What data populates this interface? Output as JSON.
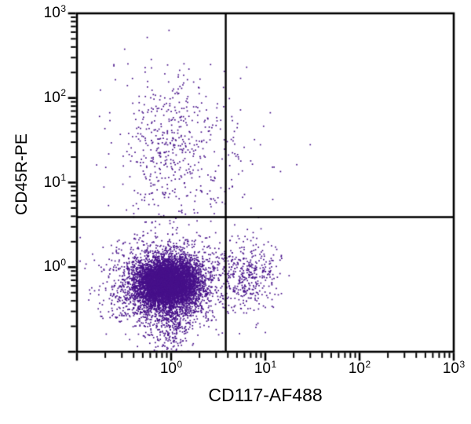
{
  "chart_data": {
    "type": "scatter",
    "subtype": "flow-cytometry-dot-plot",
    "title": "",
    "xlabel": "CD117-AF488",
    "ylabel": "CD45R-PE",
    "x_scale": "log",
    "y_scale": "log",
    "x_range": [
      0.1,
      1000
    ],
    "y_range": [
      0.1,
      1000
    ],
    "grid": false,
    "legend": false,
    "x_ticks": [
      {
        "base": "10",
        "exp": 0
      },
      {
        "base": "10",
        "exp": 1
      },
      {
        "base": "10",
        "exp": 2
      },
      {
        "base": "10",
        "exp": 3
      }
    ],
    "y_ticks": [
      {
        "base": "10",
        "exp": 0
      },
      {
        "base": "10",
        "exp": 1
      },
      {
        "base": "10",
        "exp": 2
      },
      {
        "base": "10",
        "exp": 3
      }
    ],
    "minor_ticks": "log-decades-2-through-9",
    "quadrant_gate": {
      "x": 3.8,
      "y": 3.9
    },
    "dot_color": "#47118a",
    "axis_color": "#000000",
    "background_color": "#ffffff",
    "populations": [
      {
        "name": "lower-left-core",
        "n": 5200,
        "center_x": 0.93,
        "center_y": 0.66,
        "sigma_x_decades": 0.155,
        "sigma_y_decades": 0.135
      },
      {
        "name": "lower-left-halo",
        "n": 1900,
        "center_x": 0.91,
        "center_y": 0.68,
        "sigma_x_decades": 0.3,
        "sigma_y_decades": 0.26
      },
      {
        "name": "lower-left-wing",
        "n": 700,
        "center_x": 0.71,
        "center_y": 0.46,
        "sigma_x_decades": 0.22,
        "sigma_y_decades": 0.16
      },
      {
        "name": "lower-left-bottom-tail",
        "n": 250,
        "center_x": 1.0,
        "center_y": 0.2,
        "sigma_x_decades": 0.1,
        "sigma_y_decades": 0.18
      },
      {
        "name": "lower-right-spill",
        "n": 380,
        "center_x": 6.3,
        "center_y": 0.79,
        "sigma_x_decades": 0.17,
        "sigma_y_decades": 0.22
      },
      {
        "name": "upper-left-cloud",
        "n": 430,
        "center_x": 1.0,
        "center_y": 33.0,
        "sigma_x_decades": 0.3,
        "sigma_y_decades": 0.4
      },
      {
        "name": "upper-left-bridge",
        "n": 70,
        "center_x": 1.05,
        "center_y": 6.0,
        "sigma_x_decades": 0.22,
        "sigma_y_decades": 0.22
      },
      {
        "name": "upper-right-hug",
        "n": 26,
        "center_x": 4.6,
        "center_y": 26.0,
        "sigma_x_decades": 0.1,
        "sigma_y_decades": 0.38
      },
      {
        "name": "upper-right-sparse",
        "n": 8,
        "center_x": 8.9,
        "center_y": 14.0,
        "sigma_x_decades": 0.3,
        "sigma_y_decades": 0.35
      }
    ],
    "outlier_points": [
      [
        0.95,
        630
      ],
      [
        30,
        28
      ],
      [
        14.5,
        13.5
      ],
      [
        12,
        6.3
      ],
      [
        0.53,
        228
      ]
    ]
  }
}
